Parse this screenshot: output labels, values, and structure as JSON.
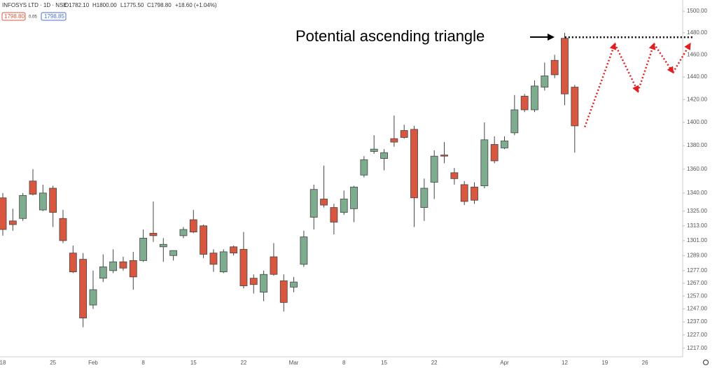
{
  "header": {
    "symbol": "INFOSYS LTD · 1D · NSE",
    "open": "O1782.10",
    "high": "H1800.00",
    "low": "L1775.50",
    "close": "C1798.80",
    "change": "+18.60 (+1.04%)",
    "bid": "1798.80",
    "spread": "0.05",
    "ask": "1798.85"
  },
  "chart_data": {
    "type": "candlestick",
    "log": true,
    "annotation": "Potential ascending triangle",
    "up_color": "#7dac8e",
    "down_color": "#d9573f",
    "categories": [
      "18",
      null,
      null,
      null,
      null,
      "25",
      null,
      null,
      null,
      "Feb",
      null,
      null,
      null,
      null,
      "8",
      null,
      null,
      null,
      null,
      "15",
      null,
      null,
      null,
      null,
      "22",
      null,
      null,
      null,
      null,
      "Mar",
      null,
      null,
      null,
      null,
      "8",
      null,
      null,
      null,
      "15",
      null,
      null,
      null,
      null,
      "22",
      null,
      null,
      null,
      null,
      null,
      null,
      "Apr",
      null,
      null,
      null,
      null,
      null,
      "12",
      null,
      null,
      null,
      "19",
      null,
      null,
      null,
      "26",
      null,
      null,
      null,
      null
    ],
    "open": [
      1336,
      1317,
      1319,
      1350,
      1326,
      1344,
      1319,
      1291,
      1286,
      1250,
      1271,
      1277,
      1284,
      1285,
      1285,
      1307,
      1296,
      1289,
      1305,
      1318,
      1313,
      1291,
      1276,
      1296,
      1294,
      1271,
      1260,
      1288,
      1269,
      1264,
      1282,
      1320,
      1335,
      1328,
      1324,
      1327,
      1355,
      1375,
      1369,
      1386,
      1393,
      1394,
      1328,
      1349,
      1372,
      1357,
      1347,
      1345,
      1346,
      1381,
      1378,
      1391,
      1423,
      1411,
      1431,
      1455,
      1475,
      1431,
      null,
      null,
      null,
      null,
      null,
      null,
      null,
      null,
      null,
      null,
      null
    ],
    "high": [
      1340,
      1327,
      1340,
      1360,
      1347,
      1346,
      1326,
      1297,
      1291,
      1277,
      1290,
      1294,
      1288,
      1292,
      1310,
      1333,
      1303,
      1293,
      1312,
      1326,
      1314,
      1294,
      1294,
      1297,
      1308,
      1274,
      1277,
      1299,
      1274,
      1272,
      1309,
      1347,
      1363,
      1331,
      1342,
      1346,
      1371,
      1389,
      1377,
      1406,
      1398,
      1397,
      1352,
      1376,
      1383,
      1361,
      1350,
      1349,
      1400,
      1388,
      1388,
      1424,
      1425,
      1437,
      1453,
      1460,
      1480,
      1433,
      null,
      null,
      null,
      null,
      null,
      null,
      null,
      null,
      null,
      null,
      null
    ],
    "low": [
      1305,
      1309,
      1317,
      1338,
      1325,
      1312,
      1299,
      1275,
      1233,
      1247,
      1268,
      1275,
      1277,
      1262,
      1284,
      1300,
      1284,
      1285,
      1303,
      1307,
      1287,
      1276,
      1275,
      1289,
      1263,
      1259,
      1253,
      1273,
      1245,
      1260,
      1280,
      1310,
      1328,
      1306,
      1322,
      1316,
      1353,
      1373,
      1359,
      1379,
      1386,
      1312,
      1317,
      1335,
      1365,
      1347,
      1330,
      1331,
      1344,
      1365,
      1377,
      1389,
      1409,
      1409,
      1428,
      1439,
      1415,
      1374,
      null,
      null,
      null,
      null,
      null,
      null,
      null,
      null,
      null,
      null,
      null
    ],
    "close": [
      1310,
      1314,
      1338,
      1339,
      1340,
      1324,
      1301,
      1276,
      1240,
      1262,
      1280,
      1284,
      1279,
      1272,
      1303,
      1305,
      1298,
      1293,
      1310,
      1308,
      1290,
      1282,
      1292,
      1291,
      1265,
      1266,
      1274,
      1274,
      1252,
      1268,
      1304,
      1343,
      1330,
      1316,
      1335,
      1345,
      1368,
      1377,
      1374,
      1383,
      1387,
      1336,
      1344,
      1371,
      1371,
      1352,
      1333,
      1334,
      1385,
      1367,
      1384,
      1411,
      1411,
      1432,
      1441,
      1442,
      1425,
      1397,
      null,
      null,
      null,
      null,
      null,
      null,
      null,
      null,
      null,
      null,
      null
    ],
    "resistance": {
      "value": 1476,
      "color": "#000000"
    },
    "projection": {
      "color": "#e02020",
      "x": [
        58,
        61,
        63.3,
        64.9,
        66.8,
        68.5
      ],
      "values": [
        1396,
        1470,
        1427,
        1470,
        1444,
        1470
      ]
    },
    "ylim": [
      1210.5,
      1510.5
    ],
    "yticks": [
      {
        "value": 1500,
        "label": "1500.00"
      },
      {
        "value": 1480,
        "label": "1480.00"
      },
      {
        "value": 1460,
        "label": "1460.00"
      },
      {
        "value": 1440,
        "label": "1440.00"
      },
      {
        "value": 1420,
        "label": "1420.00"
      },
      {
        "value": 1400,
        "label": "1400.00"
      },
      {
        "value": 1380,
        "label": "1380.00"
      },
      {
        "value": 1360,
        "label": "1360.00"
      },
      {
        "value": 1340,
        "label": "1340.00"
      },
      {
        "value": 1325,
        "label": "1325.00"
      },
      {
        "value": 1313,
        "label": "1313.00"
      },
      {
        "value": 1301,
        "label": "1301.00"
      },
      {
        "value": 1289,
        "label": "1289.00"
      },
      {
        "value": 1277,
        "label": "1277.00"
      },
      {
        "value": 1267,
        "label": "1267.00"
      },
      {
        "value": 1257,
        "label": "1257.00"
      },
      {
        "value": 1247,
        "label": "1247.00"
      },
      {
        "value": 1237,
        "label": "1237.00"
      },
      {
        "value": 1227,
        "label": "1227.00"
      },
      {
        "value": 1217,
        "label": "1217.00"
      }
    ]
  }
}
